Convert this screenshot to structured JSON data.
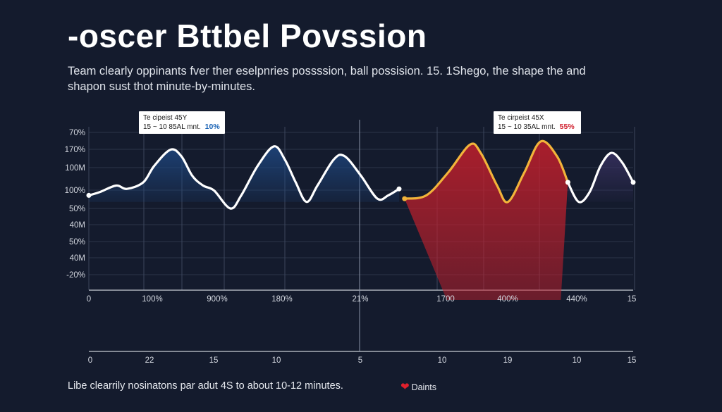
{
  "page": {
    "title": "-oscer Bttbel Povssion",
    "subtitle": "Team clearly oppinants fver ther eselpnries possssion, ball possision. 15. 1Shego, the shape the and shapon sust thot minute-by-minutes.",
    "footer": "Libe clearrily nosinatons par adut 4S to about 10-12 minutes.",
    "legend_label": "Daints"
  },
  "colors": {
    "background": "#141b2d",
    "grid": "#3b465c",
    "line": "#ffffff",
    "highlight_line": "#f2b43a",
    "highlight_fill": "#c21f2c",
    "blue_fill": "#1f4a86",
    "purple_fill": "#3a3264",
    "tooltip_blue": "#1a63b5",
    "tooltip_red": "#d0202e"
  },
  "tooltips": [
    {
      "title": "Te cipeist 45Y",
      "detail": "15  ~  10 85AL mnt.",
      "value": "10%"
    },
    {
      "title": "Te cirpeist 45X",
      "detail": "15  ~  10 35AL mnt.",
      "value": "55%"
    }
  ],
  "chart_data": {
    "type": "line",
    "title": "-oscer Bttbel Povssion",
    "y_tick_labels": [
      "70%",
      "170%",
      "100M",
      "100%",
      "50%",
      "40M",
      "50%",
      "40M",
      "-20%"
    ],
    "x_tick_labels_top": [
      "0",
      "100%",
      "900%",
      "180%",
      "21%",
      "1700",
      "400%",
      "440%",
      "15"
    ],
    "x_tick_labels_bottom": [
      "0",
      "22",
      "15",
      "10",
      "5",
      "10",
      "19",
      "10",
      "15"
    ],
    "x_range": [
      0,
      100
    ],
    "y_range": [
      -20,
      80
    ],
    "series": [
      {
        "name": "left",
        "color": "white",
        "points": [
          [
            0,
            38
          ],
          [
            2,
            40
          ],
          [
            5,
            44
          ],
          [
            7,
            42
          ],
          [
            10,
            46
          ],
          [
            12,
            56
          ],
          [
            15,
            66
          ],
          [
            17,
            62
          ],
          [
            19,
            50
          ],
          [
            21,
            44
          ],
          [
            23,
            41
          ],
          [
            26,
            30
          ],
          [
            28,
            38
          ],
          [
            31,
            56
          ],
          [
            34,
            68
          ],
          [
            36,
            60
          ],
          [
            38,
            46
          ],
          [
            40,
            34
          ],
          [
            42,
            44
          ],
          [
            45,
            60
          ],
          [
            47,
            62
          ],
          [
            50,
            50
          ],
          [
            53,
            36
          ],
          [
            55,
            38
          ],
          [
            57,
            42
          ]
        ]
      },
      {
        "name": "middle",
        "color": "orange",
        "points": [
          [
            58,
            36
          ],
          [
            62,
            38
          ],
          [
            66,
            52
          ],
          [
            70,
            69
          ],
          [
            72,
            64
          ],
          [
            75,
            44
          ],
          [
            77,
            34
          ],
          [
            80,
            52
          ],
          [
            83,
            71
          ],
          [
            86,
            62
          ],
          [
            88,
            46
          ]
        ]
      },
      {
        "name": "right",
        "color": "white",
        "points": [
          [
            88,
            46
          ],
          [
            90,
            34
          ],
          [
            92,
            40
          ],
          [
            94,
            56
          ],
          [
            96,
            64
          ],
          [
            98,
            58
          ],
          [
            100,
            46
          ]
        ]
      }
    ]
  }
}
